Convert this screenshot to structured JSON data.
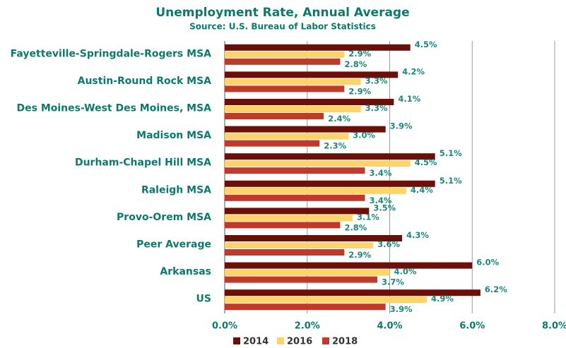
{
  "chart_data": {
    "type": "bar",
    "orientation": "horizontal",
    "title": "Unemployment Rate, Annual Average",
    "subtitle": "Source: U.S. Bureau of Labor Statistics",
    "categories": [
      "Fayetteville-Springdale-Rogers MSA",
      "Austin-Round Rock MSA",
      "Des Moines-West Des Moines, MSA",
      "Madison MSA",
      "Durham-Chapel Hill MSA",
      "Raleigh MSA",
      "Provo-Orem MSA",
      "Peer Average",
      "Arkansas",
      "US"
    ],
    "series": [
      {
        "name": "2014",
        "color": "#6b0f0a",
        "values": [
          4.5,
          4.2,
          4.1,
          3.9,
          5.1,
          5.1,
          3.5,
          4.3,
          6.0,
          6.2
        ],
        "value_labels": [
          "4.5%",
          "4.2%",
          "4.1%",
          "3.9%",
          "5.1%",
          "5.1%",
          "3.5%",
          "4.3%",
          "6.0%",
          "6.2%"
        ]
      },
      {
        "name": "2016",
        "color": "#fdd46a",
        "values": [
          2.9,
          3.3,
          3.3,
          3.0,
          4.5,
          4.4,
          3.1,
          3.6,
          4.0,
          4.9
        ],
        "value_labels": [
          "2.9%",
          "3.3%",
          "3.3%",
          "3.0%",
          "4.5%",
          "4.4%",
          "3.1%",
          "3.6%",
          "4.0%",
          "4.9%"
        ]
      },
      {
        "name": "2018",
        "color": "#c0392b",
        "values": [
          2.8,
          2.9,
          2.4,
          2.3,
          3.4,
          3.4,
          2.8,
          2.9,
          3.7,
          3.9
        ],
        "value_labels": [
          "2.8%",
          "2.9%",
          "2.4%",
          "2.3%",
          "3.4%",
          "3.4%",
          "2.8%",
          "2.9%",
          "3.7%",
          "3.9%"
        ]
      }
    ],
    "xlim": [
      0,
      8
    ],
    "xticks": [
      {
        "value": 0,
        "label": "0.0%"
      },
      {
        "value": 2,
        "label": "2.0%"
      },
      {
        "value": 4,
        "label": "4.0%"
      },
      {
        "value": 6,
        "label": "6.0%"
      },
      {
        "value": 8,
        "label": "8.0%"
      }
    ],
    "grid": true,
    "legend": "bottom"
  }
}
